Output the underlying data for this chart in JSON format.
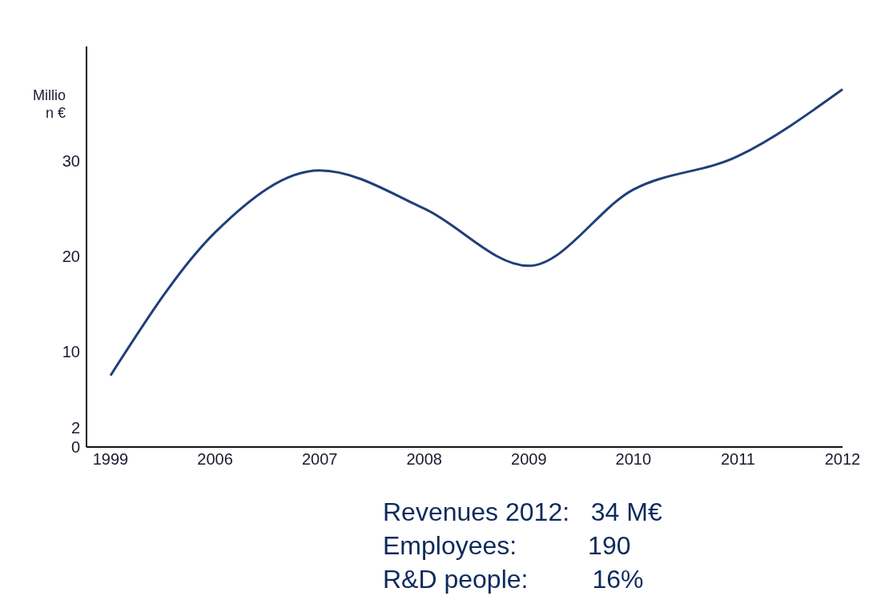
{
  "chart_data": {
    "type": "line",
    "ylabel": "Million €",
    "categories": [
      "1999",
      "2006",
      "2007",
      "2008",
      "2009",
      "2010",
      "2011",
      "2012"
    ],
    "series": [
      {
        "color": "#1f3f7a",
        "values": [
          7.5,
          22.5,
          29,
          25,
          19,
          27,
          30.5,
          37.5
        ]
      }
    ],
    "ylim": [
      0,
      42
    ],
    "yticks": [
      0,
      2,
      10,
      20,
      30
    ],
    "marker": "none",
    "line_style": "solid",
    "annotations": [
      "Revenues 2012:   34 M€",
      "Employees:          190",
      "R&D people:         16%"
    ]
  }
}
